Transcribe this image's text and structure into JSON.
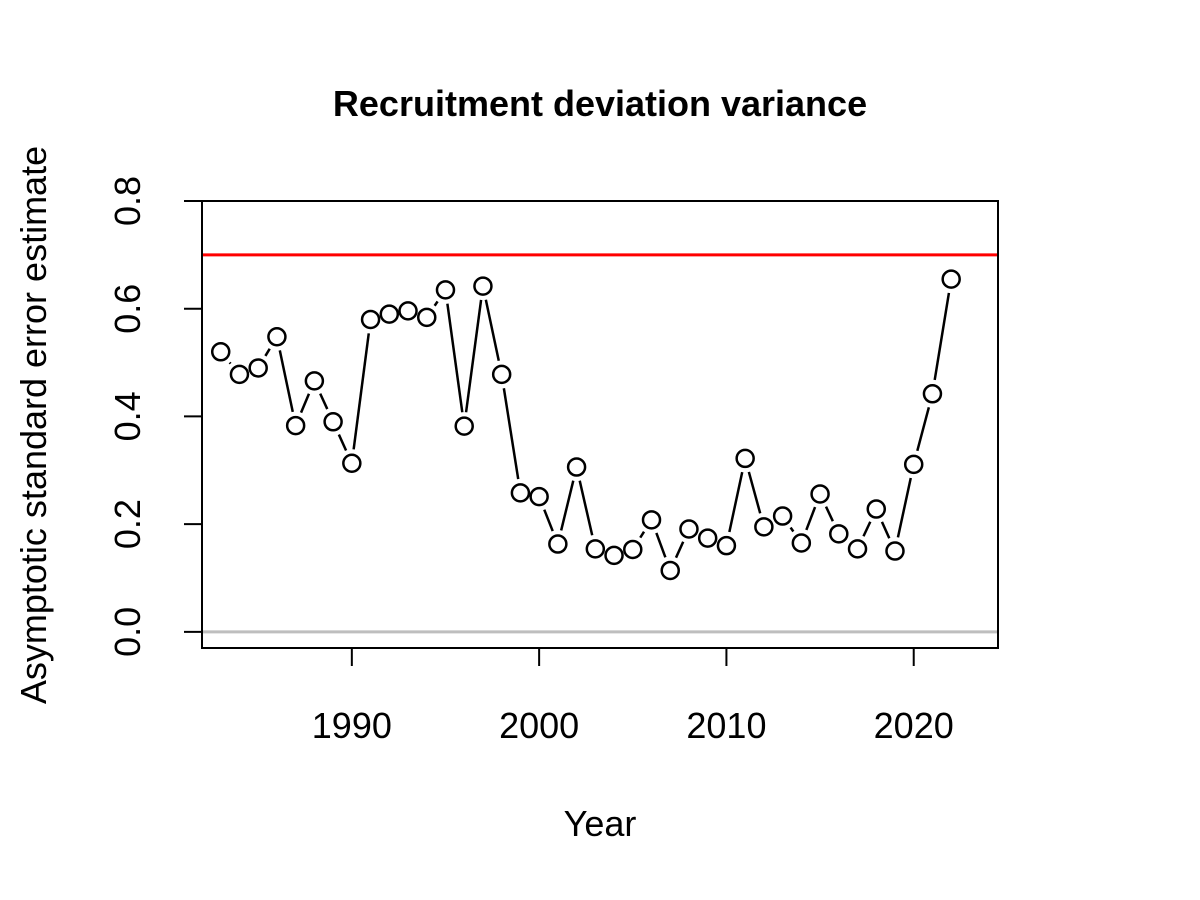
{
  "chart_data": {
    "type": "scatter",
    "title": "Recruitment deviation variance",
    "xlabel": "Year",
    "ylabel": "Asymptotic standard error estimate",
    "xlim": [
      1982,
      2024.5
    ],
    "ylim": [
      -0.03,
      0.8
    ],
    "x_ticks": [
      1990,
      2000,
      2010,
      2020
    ],
    "y_ticks": [
      0.0,
      0.2,
      0.4,
      0.6,
      0.8
    ],
    "x_tick_labels": [
      "1990",
      "2000",
      "2010",
      "2020"
    ],
    "y_tick_labels": [
      "0.0",
      "0.2",
      "0.4",
      "0.6",
      "0.8"
    ],
    "grid": false,
    "reference_lines": [
      {
        "y": 0.7,
        "color": "#ff0000"
      },
      {
        "y": 0.0,
        "color": "#bebebe"
      }
    ],
    "series": [
      {
        "marker": "open-circle",
        "line": "connected-with-gaps",
        "x": [
          1983,
          1984,
          1985,
          1986,
          1987,
          1988,
          1989,
          1990,
          1991,
          1992,
          1993,
          1994,
          1995,
          1996,
          1997,
          1998,
          1999,
          2000,
          2001,
          2002,
          2003,
          2004,
          2005,
          2006,
          2007,
          2008,
          2009,
          2010,
          2011,
          2012,
          2013,
          2014,
          2015,
          2016,
          2017,
          2018,
          2019,
          2020,
          2021,
          2022
        ],
        "y": [
          0.52,
          0.478,
          0.49,
          0.548,
          0.383,
          0.466,
          0.39,
          0.313,
          0.58,
          0.59,
          0.596,
          0.584,
          0.635,
          0.382,
          0.642,
          0.478,
          0.258,
          0.251,
          0.163,
          0.306,
          0.154,
          0.142,
          0.153,
          0.208,
          0.114,
          0.191,
          0.174,
          0.16,
          0.322,
          0.195,
          0.215,
          0.165,
          0.256,
          0.182,
          0.154,
          0.228,
          0.15,
          0.311,
          0.442,
          0.655
        ]
      }
    ]
  }
}
